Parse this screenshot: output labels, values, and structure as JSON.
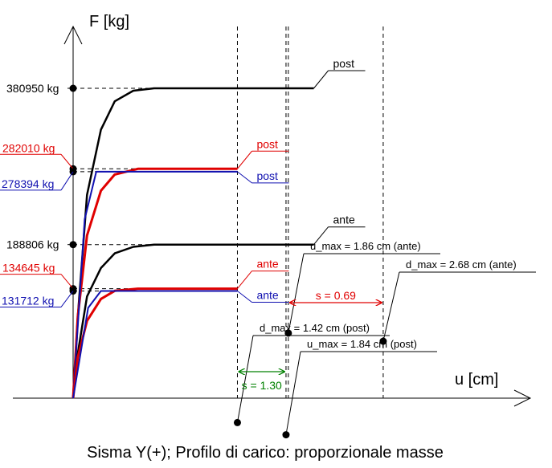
{
  "chart_data": {
    "type": "line",
    "title": "Sisma Y(+); Profilo di carico: proporzionale masse",
    "xlabel": "u [cm]",
    "ylabel": "F [kg]",
    "colors": {
      "black": "#000000",
      "red": "#e00000",
      "blue": "#1010b0",
      "green": "#008000"
    },
    "y_ticks": [
      {
        "value": 380950,
        "label": "380950 kg",
        "color": "black"
      },
      {
        "value": 282010,
        "label": "282010 kg",
        "color": "red"
      },
      {
        "value": 278394,
        "label": "278394 kg",
        "color": "blue"
      },
      {
        "value": 188806,
        "label": "188806 kg",
        "color": "black"
      },
      {
        "value": 134645,
        "label": "134645 kg",
        "color": "red"
      },
      {
        "value": 131712,
        "label": "131712 kg",
        "color": "blue"
      }
    ],
    "series": [
      {
        "label": "post",
        "color": "black",
        "points": [
          [
            0,
            0
          ],
          [
            0.04,
            100000
          ],
          [
            0.12,
            250000
          ],
          [
            0.24,
            330000
          ],
          [
            0.36,
            365000
          ],
          [
            0.52,
            378000
          ],
          [
            0.7,
            380950
          ],
          [
            1.86,
            380950
          ],
          [
            2.08,
            380950
          ]
        ]
      },
      {
        "label": "post",
        "color": "red",
        "points": [
          [
            0,
            0
          ],
          [
            0.04,
            100000
          ],
          [
            0.12,
            200000
          ],
          [
            0.24,
            255000
          ],
          [
            0.36,
            275000
          ],
          [
            0.56,
            282010
          ],
          [
            1.42,
            282010
          ]
        ]
      },
      {
        "label": "post",
        "color": "blue",
        "points": [
          [
            0,
            0
          ],
          [
            0.1,
            220000
          ],
          [
            0.2,
            278394
          ],
          [
            1.42,
            278394
          ]
        ]
      },
      {
        "label": "ante",
        "color": "black",
        "points": [
          [
            0,
            0
          ],
          [
            0.04,
            55000
          ],
          [
            0.12,
            125000
          ],
          [
            0.24,
            160000
          ],
          [
            0.36,
            178000
          ],
          [
            0.52,
            186000
          ],
          [
            0.7,
            188806
          ],
          [
            1.86,
            188806
          ],
          [
            2.08,
            188806
          ]
        ]
      },
      {
        "label": "ante",
        "color": "red",
        "points": [
          [
            0,
            0
          ],
          [
            0.04,
            50000
          ],
          [
            0.12,
            95000
          ],
          [
            0.24,
            122000
          ],
          [
            0.36,
            132000
          ],
          [
            0.56,
            134645
          ],
          [
            1.42,
            134645
          ]
        ]
      },
      {
        "label": "ante",
        "color": "blue",
        "points": [
          [
            0,
            0
          ],
          [
            0.13,
            111000
          ],
          [
            0.24,
            131712
          ],
          [
            1.42,
            131712
          ]
        ]
      }
    ],
    "vlines": [
      1.42,
      1.84,
      1.86,
      2.68
    ],
    "markers": [
      {
        "x": 1.86,
        "y": 80000,
        "label": "u_max = 1.86 cm (ante)"
      },
      {
        "x": 2.68,
        "y": 70000,
        "label": "d_max = 2.68 cm (ante)"
      },
      {
        "x": 1.42,
        "y": -30000,
        "label": "d_max = 1.42 cm (post)"
      },
      {
        "x": 1.84,
        "y": -45000,
        "label": "u_max = 1.84 cm (post)"
      }
    ],
    "spans": [
      {
        "from": 1.86,
        "to": 2.68,
        "label": "s = 0.69",
        "color": "red"
      },
      {
        "from": 1.42,
        "to": 1.84,
        "label": "s = 1.30",
        "color": "green"
      }
    ]
  }
}
